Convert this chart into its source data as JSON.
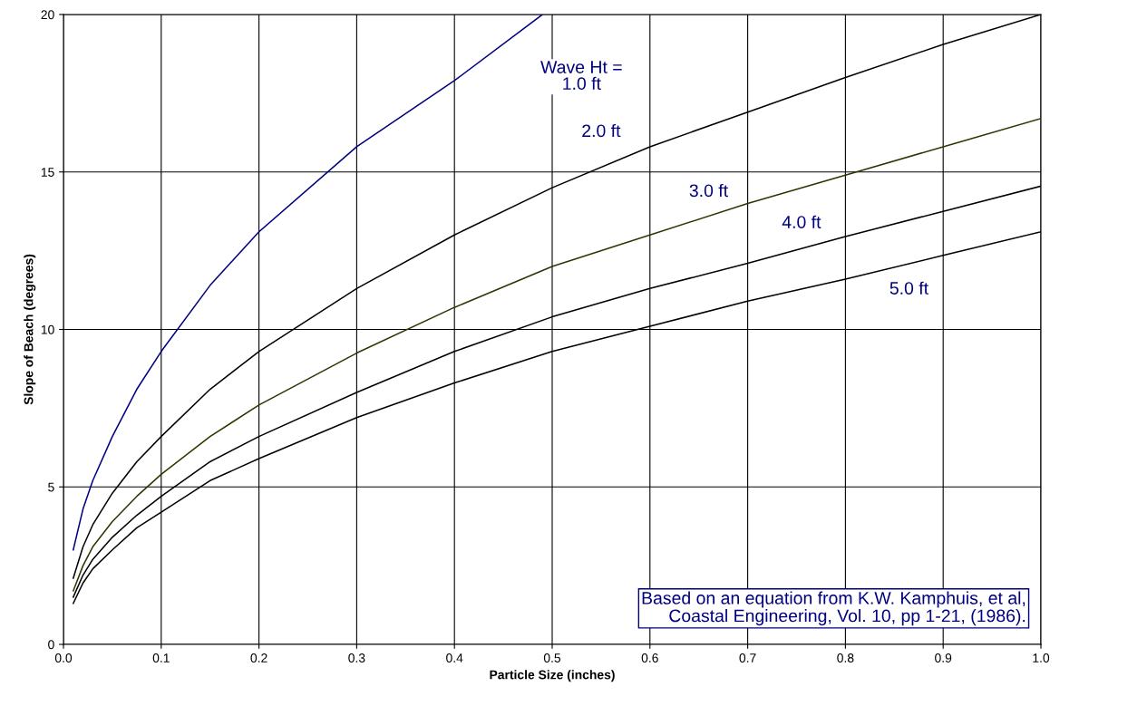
{
  "chart_data": {
    "type": "line",
    "xlabel": "Particle Size (inches)",
    "ylabel": "Slope of Beach (degrees)",
    "xlim": [
      0,
      1.0
    ],
    "ylim": [
      0,
      20
    ],
    "xticks": [
      {
        "value": 0,
        "label": "0.0"
      },
      0.1,
      0.2,
      0.3,
      0.4,
      0.5,
      0.6,
      0.7,
      0.8,
      0.9,
      {
        "value": 1.0,
        "label": "1.0"
      }
    ],
    "yticks": [
      0,
      5,
      10,
      15,
      20
    ],
    "grid": true,
    "marker": "none",
    "line_style": "solid",
    "x": [
      0.01,
      0.02,
      0.03,
      0.05,
      0.075,
      0.1,
      0.15,
      0.2,
      0.3,
      0.4,
      0.5,
      0.6,
      0.7,
      0.8,
      0.9,
      1.0
    ],
    "series": [
      {
        "name": "Wave Ht =\n1.0 ft",
        "color": "#000080",
        "x": [
          0.01,
          0.02,
          0.03,
          0.05,
          0.075,
          0.1,
          0.15,
          0.2,
          0.3,
          0.4,
          0.49
        ],
        "values": [
          3.0,
          4.3,
          5.2,
          6.6,
          8.1,
          9.3,
          11.4,
          13.1,
          15.8,
          17.9,
          20.0
        ]
      },
      {
        "name": "2.0 ft",
        "color": "#000000",
        "values": [
          2.1,
          3.1,
          3.8,
          4.8,
          5.8,
          6.6,
          8.1,
          9.3,
          11.3,
          13.0,
          14.5,
          15.8,
          16.9,
          18.0,
          19.05,
          20.0
        ]
      },
      {
        "name": "3.0 ft",
        "color": "#333300",
        "values": [
          1.7,
          2.5,
          3.1,
          3.9,
          4.7,
          5.4,
          6.6,
          7.6,
          9.25,
          10.7,
          12.0,
          13.0,
          14.0,
          14.9,
          15.8,
          16.7
        ]
      },
      {
        "name": "4.0 ft",
        "color": "#000000",
        "values": [
          1.5,
          2.2,
          2.7,
          3.4,
          4.1,
          4.7,
          5.8,
          6.6,
          8.0,
          9.3,
          10.4,
          11.3,
          12.1,
          12.95,
          13.75,
          14.55
        ]
      },
      {
        "name": "5.0 ft",
        "color": "#000000",
        "values": [
          1.3,
          1.95,
          2.4,
          3.0,
          3.7,
          4.2,
          5.2,
          5.9,
          7.2,
          8.3,
          9.3,
          10.1,
          10.9,
          11.6,
          12.35,
          13.1
        ]
      }
    ],
    "annotations": [
      "Based on an equation from K.W. Kamphuis, et al,\nCoastal Engineering, Vol. 10, pp 1-21, (1986)."
    ]
  }
}
